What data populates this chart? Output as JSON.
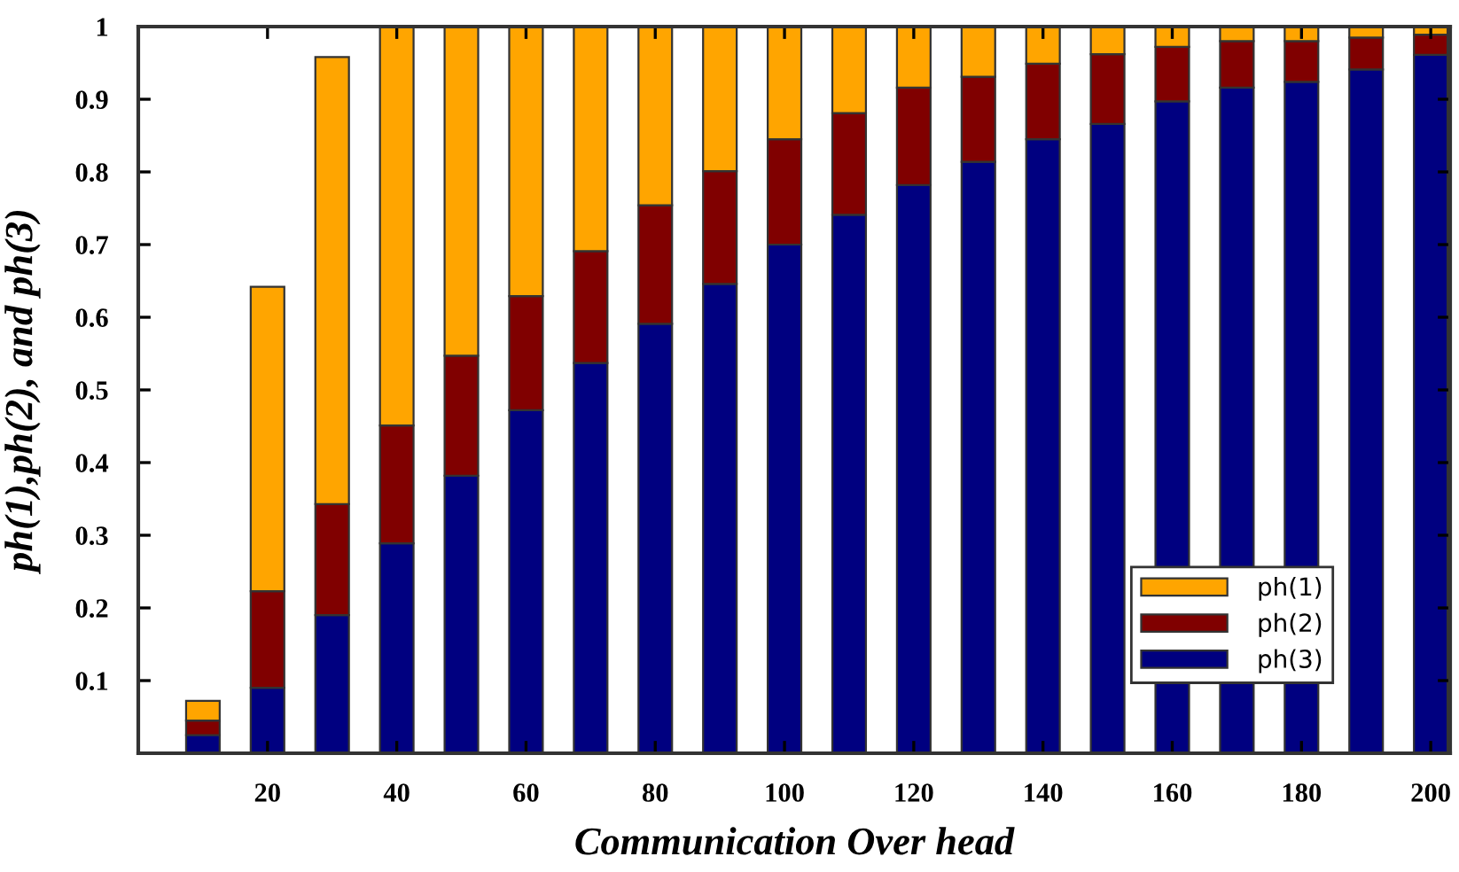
{
  "chart_data": {
    "type": "bar",
    "stacked": true,
    "xlabel": "Communication Over head",
    "ylabel": "ph(1),ph(2), and ph(3)",
    "x": [
      10,
      20,
      30,
      40,
      50,
      60,
      70,
      80,
      90,
      100,
      110,
      120,
      130,
      140,
      150,
      160,
      170,
      180,
      190,
      200
    ],
    "series": [
      {
        "name": "ph(3)",
        "color": "#000080",
        "values": [
          0.025,
          0.09,
          0.19,
          0.289,
          0.382,
          0.472,
          0.537,
          0.591,
          0.646,
          0.7,
          0.741,
          0.782,
          0.814,
          0.845,
          0.866,
          0.897,
          0.916,
          0.924,
          0.941,
          0.961
        ]
      },
      {
        "name": "ph(2)",
        "color": "#800000",
        "values": [
          0.02,
          0.133,
          0.153,
          0.162,
          0.165,
          0.157,
          0.154,
          0.163,
          0.155,
          0.145,
          0.14,
          0.134,
          0.117,
          0.104,
          0.096,
          0.075,
          0.064,
          0.056,
          0.044,
          0.028
        ]
      },
      {
        "name": "ph(1)",
        "color": "#ffa500",
        "values": [
          0.027,
          0.419,
          0.615,
          0.549,
          0.453,
          0.371,
          0.309,
          0.246,
          0.199,
          0.155,
          0.119,
          0.084,
          0.069,
          0.051,
          0.038,
          0.028,
          0.02,
          0.02,
          0.015,
          0.011
        ]
      }
    ],
    "xlim": [
      0,
      203
    ],
    "xticks": [
      20,
      40,
      60,
      80,
      100,
      120,
      140,
      160,
      180,
      200
    ],
    "ylim": [
      0,
      1
    ],
    "yticks": [
      0.1,
      0.2,
      0.3,
      0.4,
      0.5,
      0.6,
      0.7,
      0.8,
      0.9,
      1
    ],
    "grid": false,
    "legend": "bottom right"
  }
}
